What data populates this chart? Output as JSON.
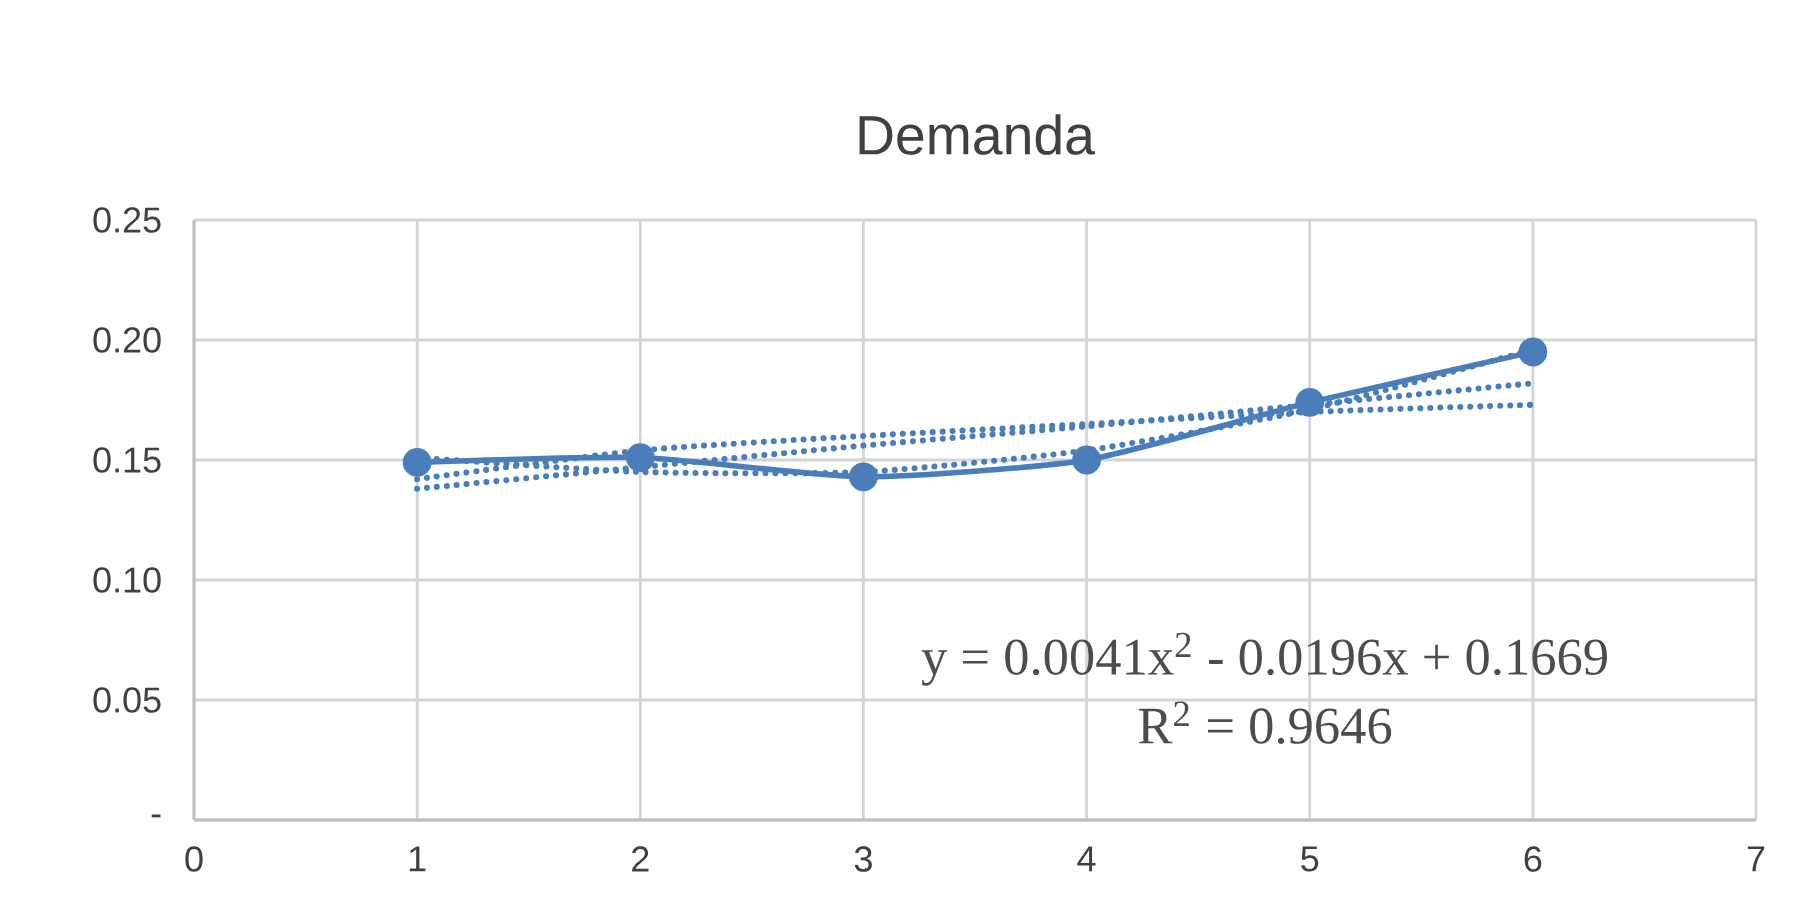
{
  "chart_data": {
    "type": "line",
    "title": "Demanda",
    "x": [
      1,
      2,
      3,
      4,
      5,
      6
    ],
    "series": [
      {
        "color": "#4a7ebb",
        "values": [
          0.149,
          0.151,
          0.143,
          0.15,
          0.174,
          0.195
        ],
        "marker": "circle",
        "line_style": "solid"
      },
      {
        "color": "#4a7ebb",
        "values": [
          0.138,
          0.147,
          0.156,
          0.164,
          0.173,
          0.182
        ],
        "marker": "none",
        "line_style": "dotted"
      },
      {
        "color": "#4a7ebb",
        "values": [
          0.142,
          0.154,
          0.16,
          0.165,
          0.17,
          0.173
        ],
        "marker": "none",
        "line_style": "dotted"
      },
      {
        "color": "#4a7ebb",
        "values": [
          0.151,
          0.145,
          0.145,
          0.154,
          0.171,
          0.196
        ],
        "marker": "none",
        "line_style": "dotted"
      }
    ],
    "xlim": [
      0,
      7
    ],
    "xticks": [
      0,
      1,
      2,
      3,
      4,
      5,
      6,
      7
    ],
    "ylim": [
      0,
      0.25
    ],
    "yticks": [
      {
        "value": 0,
        "label": "-"
      },
      0.05,
      {
        "value": 0.1,
        "label": "0.10"
      },
      0.15,
      {
        "value": 0.2,
        "label": "0.20"
      },
      0.25
    ],
    "grid": true,
    "annotations": [
      "y = 0.0041x$^{2}$ - 0.0196x + 0.1669",
      "R$^{2}$ = 0.9646"
    ]
  }
}
